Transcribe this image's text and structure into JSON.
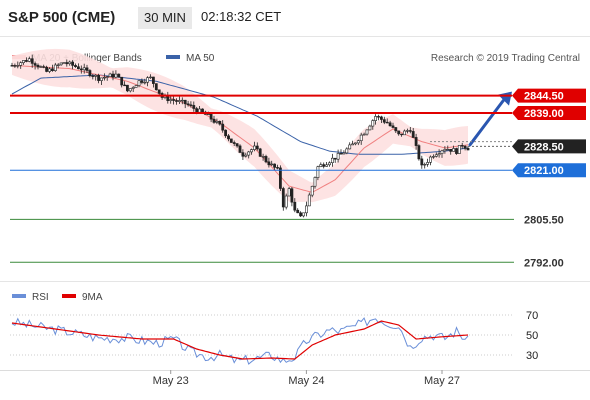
{
  "header": {
    "symbol": "S&P 500 (CME)",
    "timeframe": "30 MIN",
    "time": "02:18:32 CET"
  },
  "legend": {
    "ma20_label": "MA 20 + Bollinger Bands",
    "ma50_label": "MA 50",
    "ma20_color": "#f08080",
    "ma50_color": "#3a62a8"
  },
  "source": "Research © 2019 Trading Central",
  "chart_data": [
    {
      "type": "candlestick",
      "ylim": [
        2788,
        2862
      ],
      "x_ticks": [
        "May 23",
        "May 24",
        "May 27"
      ],
      "levels": [
        {
          "value": 2844.5,
          "label": "2844.50",
          "color": "#e00000",
          "style": "tag"
        },
        {
          "value": 2839.0,
          "label": "2839.00",
          "color": "#e00000",
          "style": "tag"
        },
        {
          "value": 2828.5,
          "label": "2828.50",
          "color": "#222222",
          "style": "tag"
        },
        {
          "value": 2821.0,
          "label": "2821.00",
          "color": "#1e6fd9",
          "style": "tag"
        },
        {
          "value": 2805.5,
          "label": "2805.50",
          "color": "#3a8a3a",
          "style": "plain"
        },
        {
          "value": 2792.0,
          "label": "2792.00",
          "color": "#3a8a3a",
          "style": "plain"
        }
      ],
      "close_path": [
        [
          0,
          2854
        ],
        [
          6,
          2856
        ],
        [
          12,
          2852
        ],
        [
          18,
          2855
        ],
        [
          24,
          2853
        ],
        [
          30,
          2850
        ],
        [
          36,
          2851
        ],
        [
          40,
          2846
        ],
        [
          44,
          2849
        ],
        [
          48,
          2850
        ],
        [
          52,
          2844
        ],
        [
          56,
          2843
        ],
        [
          60,
          2842
        ],
        [
          64,
          2840
        ],
        [
          68,
          2838
        ],
        [
          72,
          2835
        ],
        [
          76,
          2830
        ],
        [
          80,
          2826
        ],
        [
          84,
          2828
        ],
        [
          88,
          2824
        ],
        [
          92,
          2821
        ],
        [
          94,
          2810
        ],
        [
          96,
          2815
        ],
        [
          98,
          2808
        ],
        [
          100,
          2806
        ],
        [
          102,
          2810
        ],
        [
          106,
          2822
        ],
        [
          110,
          2824
        ],
        [
          114,
          2826
        ],
        [
          118,
          2829
        ],
        [
          122,
          2833
        ],
        [
          126,
          2838
        ],
        [
          130,
          2836
        ],
        [
          134,
          2832
        ],
        [
          138,
          2834
        ],
        [
          142,
          2822
        ],
        [
          146,
          2826
        ],
        [
          150,
          2828
        ],
        [
          154,
          2827
        ],
        [
          156,
          2829
        ],
        [
          158,
          2828
        ]
      ],
      "ma20_path": [
        [
          0,
          2854
        ],
        [
          20,
          2853
        ],
        [
          40,
          2849
        ],
        [
          60,
          2842
        ],
        [
          72,
          2836
        ],
        [
          84,
          2828
        ],
        [
          96,
          2816
        ],
        [
          104,
          2814
        ],
        [
          112,
          2818
        ],
        [
          122,
          2828
        ],
        [
          132,
          2834
        ],
        [
          142,
          2830
        ],
        [
          150,
          2828
        ],
        [
          158,
          2829
        ]
      ],
      "ma50_path": [
        [
          0,
          2845
        ],
        [
          10,
          2850
        ],
        [
          30,
          2851
        ],
        [
          50,
          2849
        ],
        [
          70,
          2844
        ],
        [
          85,
          2838
        ],
        [
          100,
          2830
        ],
        [
          110,
          2827
        ],
        [
          120,
          2826
        ],
        [
          135,
          2826
        ],
        [
          150,
          2827
        ],
        [
          158,
          2828
        ]
      ],
      "forecast_arrow": {
        "from": 2829,
        "to": 2844.5
      }
    },
    {
      "type": "line",
      "legend": [
        "RSI",
        "9MA"
      ],
      "series_colors": [
        "#6a8fd8",
        "#e00000"
      ],
      "ylim": [
        20,
        80
      ],
      "y_ticks": [
        30,
        50,
        70
      ],
      "rsi": [
        [
          0,
          63
        ],
        [
          10,
          58
        ],
        [
          20,
          53
        ],
        [
          30,
          47
        ],
        [
          40,
          47
        ],
        [
          50,
          42
        ],
        [
          56,
          46
        ],
        [
          62,
          33
        ],
        [
          68,
          28
        ],
        [
          72,
          30
        ],
        [
          78,
          24
        ],
        [
          84,
          26
        ],
        [
          90,
          30
        ],
        [
          94,
          24
        ],
        [
          98,
          28
        ],
        [
          102,
          44
        ],
        [
          106,
          50
        ],
        [
          110,
          55
        ],
        [
          114,
          54
        ],
        [
          120,
          60
        ],
        [
          126,
          68
        ],
        [
          130,
          62
        ],
        [
          134,
          60
        ],
        [
          138,
          38
        ],
        [
          142,
          48
        ],
        [
          146,
          50
        ],
        [
          150,
          47
        ],
        [
          154,
          54
        ],
        [
          158,
          44
        ]
      ],
      "ma9": [
        [
          0,
          62
        ],
        [
          15,
          56
        ],
        [
          30,
          50
        ],
        [
          45,
          46
        ],
        [
          56,
          46
        ],
        [
          64,
          36
        ],
        [
          72,
          30
        ],
        [
          80,
          26
        ],
        [
          90,
          27
        ],
        [
          98,
          26
        ],
        [
          104,
          40
        ],
        [
          112,
          50
        ],
        [
          122,
          56
        ],
        [
          128,
          64
        ],
        [
          134,
          60
        ],
        [
          140,
          46
        ],
        [
          148,
          48
        ],
        [
          158,
          50
        ]
      ]
    }
  ]
}
